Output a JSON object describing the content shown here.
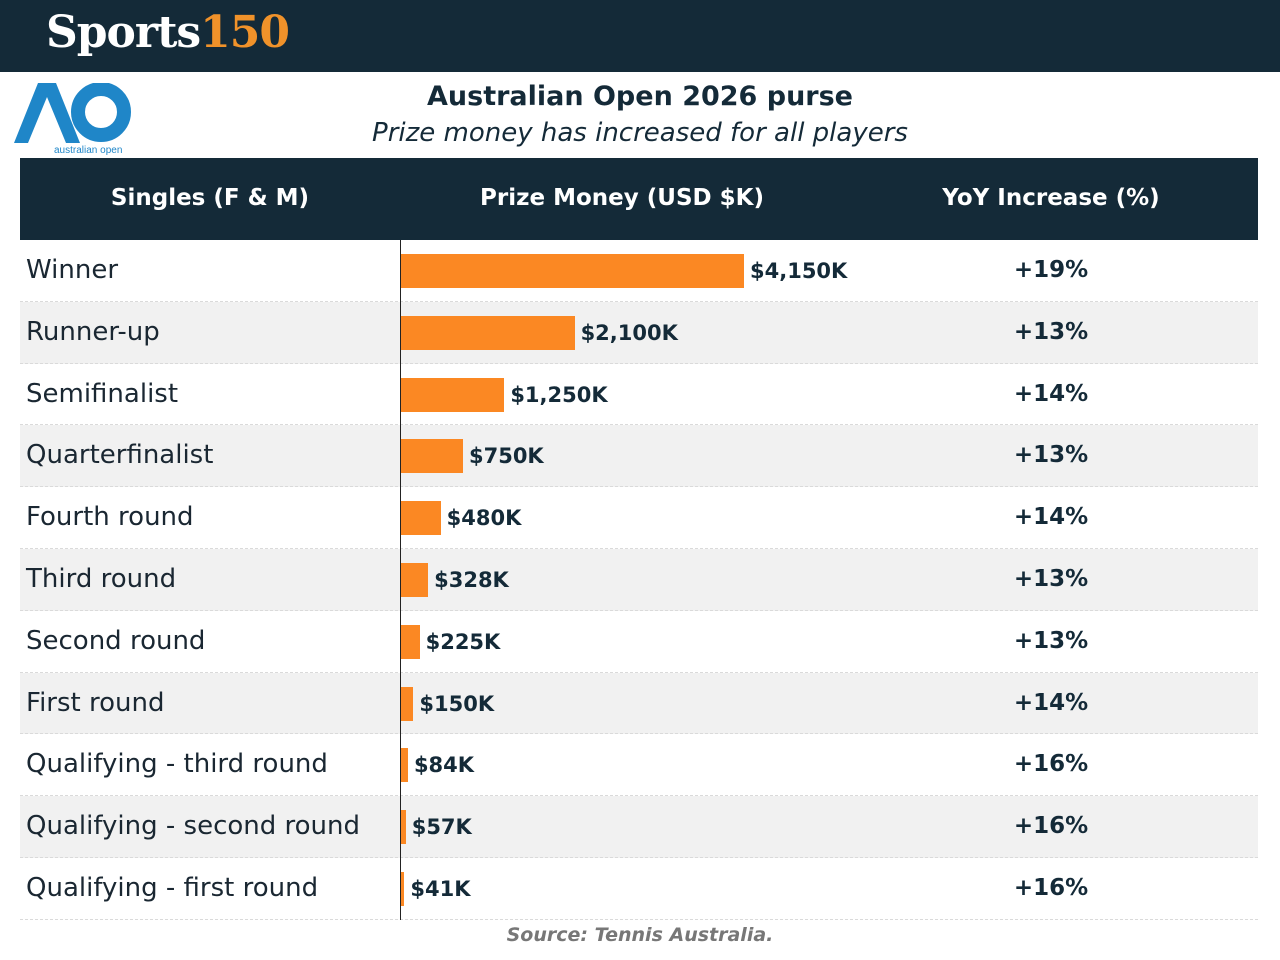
{
  "brand": {
    "part1": "Sports",
    "part2": "150"
  },
  "logo": {
    "mark": "AO",
    "text": "australian open"
  },
  "header": {
    "title": "Australian Open 2026 purse",
    "subtitle": "Prize money has increased for all players"
  },
  "table": {
    "headers": [
      "Singles (F & M)",
      "Prize Money (USD $K)",
      "YoY Increase (%)"
    ]
  },
  "chart_data": {
    "type": "bar",
    "orientation": "horizontal",
    "title": "Australian Open 2026 purse",
    "subtitle": "Prize money has increased for all players",
    "xlabel": "Prize Money (USD $K)",
    "ylabel": "Singles (F & M)",
    "categories": [
      "Winner",
      "Runner-up",
      "Semifinalist",
      "Quarterfinalist",
      "Fourth round",
      "Third round",
      "Second round",
      "First round",
      "Qualifying - third round",
      "Qualifying - second round",
      "Qualifying - first round"
    ],
    "values": [
      4150,
      2100,
      1250,
      750,
      480,
      328,
      225,
      150,
      84,
      57,
      41
    ],
    "value_labels": [
      "$4,150K",
      "$2,100K",
      "$1,250K",
      "$750K",
      "$480K",
      "$328K",
      "$225K",
      "$150K",
      "$84K",
      "$57K",
      "$41K"
    ],
    "yoy_increase": [
      "+19%",
      "+13%",
      "+14%",
      "+13%",
      "+14%",
      "+13%",
      "+13%",
      "+14%",
      "+16%",
      "+16%",
      "+16%"
    ],
    "xlim": [
      0,
      4150
    ],
    "bar_color": "#fb8823"
  },
  "source": "Source: Tennis Australia.",
  "colors": {
    "header_bg": "#142a38",
    "accent": "#f0922a",
    "logo_blue": "#1f86c8"
  }
}
